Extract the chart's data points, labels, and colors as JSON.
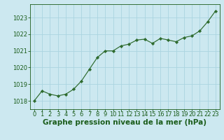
{
  "x": [
    0,
    1,
    2,
    3,
    4,
    5,
    6,
    7,
    8,
    9,
    10,
    11,
    12,
    13,
    14,
    15,
    16,
    17,
    18,
    19,
    20,
    21,
    22,
    23
  ],
  "y": [
    1018.0,
    1018.6,
    1018.4,
    1018.3,
    1018.4,
    1018.7,
    1019.2,
    1019.9,
    1020.6,
    1021.0,
    1021.0,
    1021.3,
    1021.4,
    1021.65,
    1021.7,
    1021.45,
    1021.75,
    1021.65,
    1021.55,
    1021.8,
    1021.9,
    1022.2,
    1022.75,
    1023.4
  ],
  "xlabel": "Graphe pression niveau de la mer (hPa)",
  "ylim": [
    1017.5,
    1023.8
  ],
  "xlim": [
    -0.5,
    23.5
  ],
  "yticks": [
    1018,
    1019,
    1020,
    1021,
    1022,
    1023
  ],
  "xticks": [
    0,
    1,
    2,
    3,
    4,
    5,
    6,
    7,
    8,
    9,
    10,
    11,
    12,
    13,
    14,
    15,
    16,
    17,
    18,
    19,
    20,
    21,
    22,
    23
  ],
  "line_color": "#2d6a2d",
  "marker": "D",
  "marker_size": 2.2,
  "bg_color": "#cce8f0",
  "grid_color": "#aad4e0",
  "xlabel_fontsize": 7.5,
  "tick_fontsize": 6.0,
  "label_color": "#1a5c1a",
  "linewidth": 0.85
}
